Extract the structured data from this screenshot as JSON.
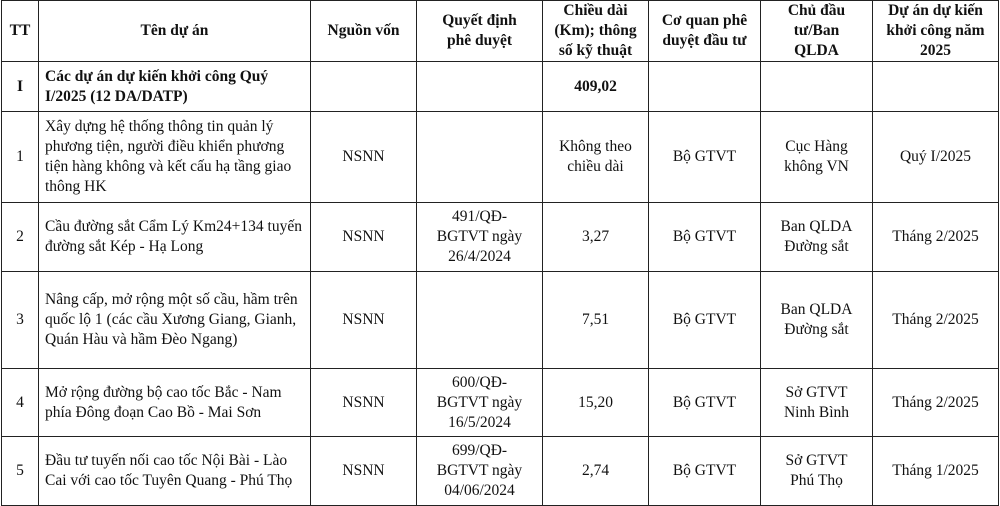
{
  "headers": [
    "TT",
    "Tên dự án",
    "Nguồn vốn",
    "Quyết định phê duyệt",
    "Chiều dài (Km); thông số kỹ thuật",
    "Cơ quan phê duyệt đầu tư",
    "Chủ đầu tư/Ban QLDA",
    "Dự án dự kiến khởi công năm 2025"
  ],
  "group": {
    "tt": "I",
    "name": "Các dự án dự kiến khởi công Quý I/2025 (12 DA/DATP)",
    "length": "409,02"
  },
  "rows": [
    {
      "tt": "1",
      "name": "Xây dựng hệ thống thông tin quản lý phương tiện, người điều khiển phương tiện hàng không và kết cấu hạ tầng giao thông HK",
      "source": "NSNN",
      "decision": "",
      "length": "Không theo chiều dài",
      "approver": "Bộ GTVT",
      "owner": "Cục Hàng không VN",
      "start": "Quý I/2025"
    },
    {
      "tt": "2",
      "name": "Cầu đường sắt Cẩm Lý Km24+134 tuyến đường sắt Kép - Hạ Long",
      "source": "NSNN",
      "decision": "491/QĐ-BGTVT ngày 26/4/2024",
      "length": "3,27",
      "approver": "Bộ GTVT",
      "owner": "Ban QLDA Đường sắt",
      "start": "Tháng 2/2025"
    },
    {
      "tt": "3",
      "name": "Nâng cấp, mở rộng một số cầu, hầm trên quốc lộ 1 (các cầu Xương Giang, Gianh, Quán Hàu và hầm Đèo Ngang)",
      "source": "NSNN",
      "decision": "",
      "length": "7,51",
      "approver": "Bộ GTVT",
      "owner": "Ban QLDA Đường sắt",
      "start": "Tháng 2/2025"
    },
    {
      "tt": "4",
      "name": "Mở rộng đường bộ cao tốc Bắc - Nam phía Đông đoạn Cao Bồ - Mai Sơn",
      "source": "NSNN",
      "decision": "600/QĐ-BGTVT ngày 16/5/2024",
      "length": "15,20",
      "approver": "Bộ GTVT",
      "owner": "Sở GTVT Ninh Bình",
      "start": "Tháng 2/2025"
    },
    {
      "tt": "5",
      "name": "Đầu tư tuyến nối cao tốc Nội Bài - Lào Cai với cao tốc Tuyên Quang - Phú Thọ",
      "source": "NSNN",
      "decision": "699/QĐ-BGTVT ngày 04/06/2024",
      "length": "2,74",
      "approver": "Bộ GTVT",
      "owner": "Sở GTVT Phú Thọ",
      "start": "Tháng 1/2025"
    }
  ]
}
